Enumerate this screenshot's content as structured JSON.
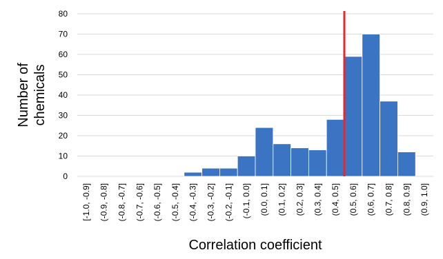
{
  "chart_data": {
    "type": "bar",
    "title": "",
    "xlabel": "Correlation coefficient",
    "ylabel_lines": [
      "Number of",
      "chemicals"
    ],
    "categories": [
      "[-1.0, -0.9]",
      "(-0.9, -0.8]",
      "(-0.8, -0.7]",
      "(-0.7, -0.6]",
      "(-0.6, -0.5]",
      "(-0.5, -0.4]",
      "(-0.4, -0.3]",
      "(-0.3, -0.2]",
      "(-0.2, -0.1]",
      "(-0.1, 0.0]",
      "(0.0, 0.1]",
      "(0.1, 0.2]",
      "(0.2, 0.3]",
      "(0.3, 0.4]",
      "(0.4, 0.5]",
      "(0.5, 0.6]",
      "(0.6, 0.7]",
      "(0.7, 0.8]",
      "(0.8, 0.9]",
      "(0.9, 1.0]"
    ],
    "values": [
      0,
      0,
      0,
      0,
      0,
      0,
      2,
      4,
      4,
      10,
      24,
      16,
      14,
      13,
      28,
      59,
      70,
      37,
      12,
      0
    ],
    "ylim": [
      0,
      80
    ],
    "yticks": [
      0,
      10,
      20,
      30,
      40,
      50,
      60,
      70,
      80
    ],
    "grid": true,
    "legend": "none",
    "reference_line": {
      "x": 0.5,
      "color": "#e8262b"
    },
    "bar_color": "#3a74c2"
  }
}
